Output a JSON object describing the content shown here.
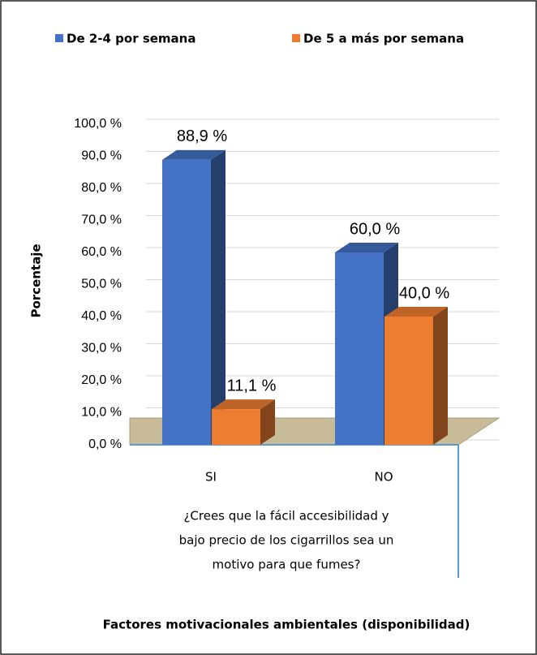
{
  "chart_data": {
    "type": "bar",
    "title": "Factores motivacionales ambientales (disponibilidad)",
    "ylabel": "Porcentaje",
    "xlabel": [
      "¿Crees que la fácil accesibilidad y",
      "bajo precio de los cigarrillos sea un",
      "motivo para que fumes?"
    ],
    "categories": [
      "SI",
      "NO"
    ],
    "series": [
      {
        "name": "De 2-4 por semana",
        "color": "#4472c4",
        "values": [
          88.9,
          60.0
        ],
        "value_labels": [
          "88,9 %",
          "60,0 %"
        ]
      },
      {
        "name": "De 5 a más por semana",
        "color": "#ed7d31",
        "values": [
          11.1,
          40.0
        ],
        "value_labels": [
          "11,1 %",
          "40,0 %"
        ]
      }
    ],
    "ylim": [
      0,
      110
    ],
    "yticks": [
      {
        "value": 0,
        "label": "0,0 %"
      },
      {
        "value": 10,
        "label": "10,0 %"
      },
      {
        "value": 20,
        "label": "20,0 %"
      },
      {
        "value": 30,
        "label": "30,0 %"
      },
      {
        "value": 40,
        "label": "40,0 %"
      },
      {
        "value": 50,
        "label": "50,0 %"
      },
      {
        "value": 60,
        "label": "60,0 %"
      },
      {
        "value": 70,
        "label": "70,0 %"
      },
      {
        "value": 80,
        "label": "80,0 %"
      },
      {
        "value": 90,
        "label": "90,0 %"
      },
      {
        "value": 100,
        "label": "100,0 %"
      }
    ],
    "grid": true,
    "legend": "top"
  }
}
